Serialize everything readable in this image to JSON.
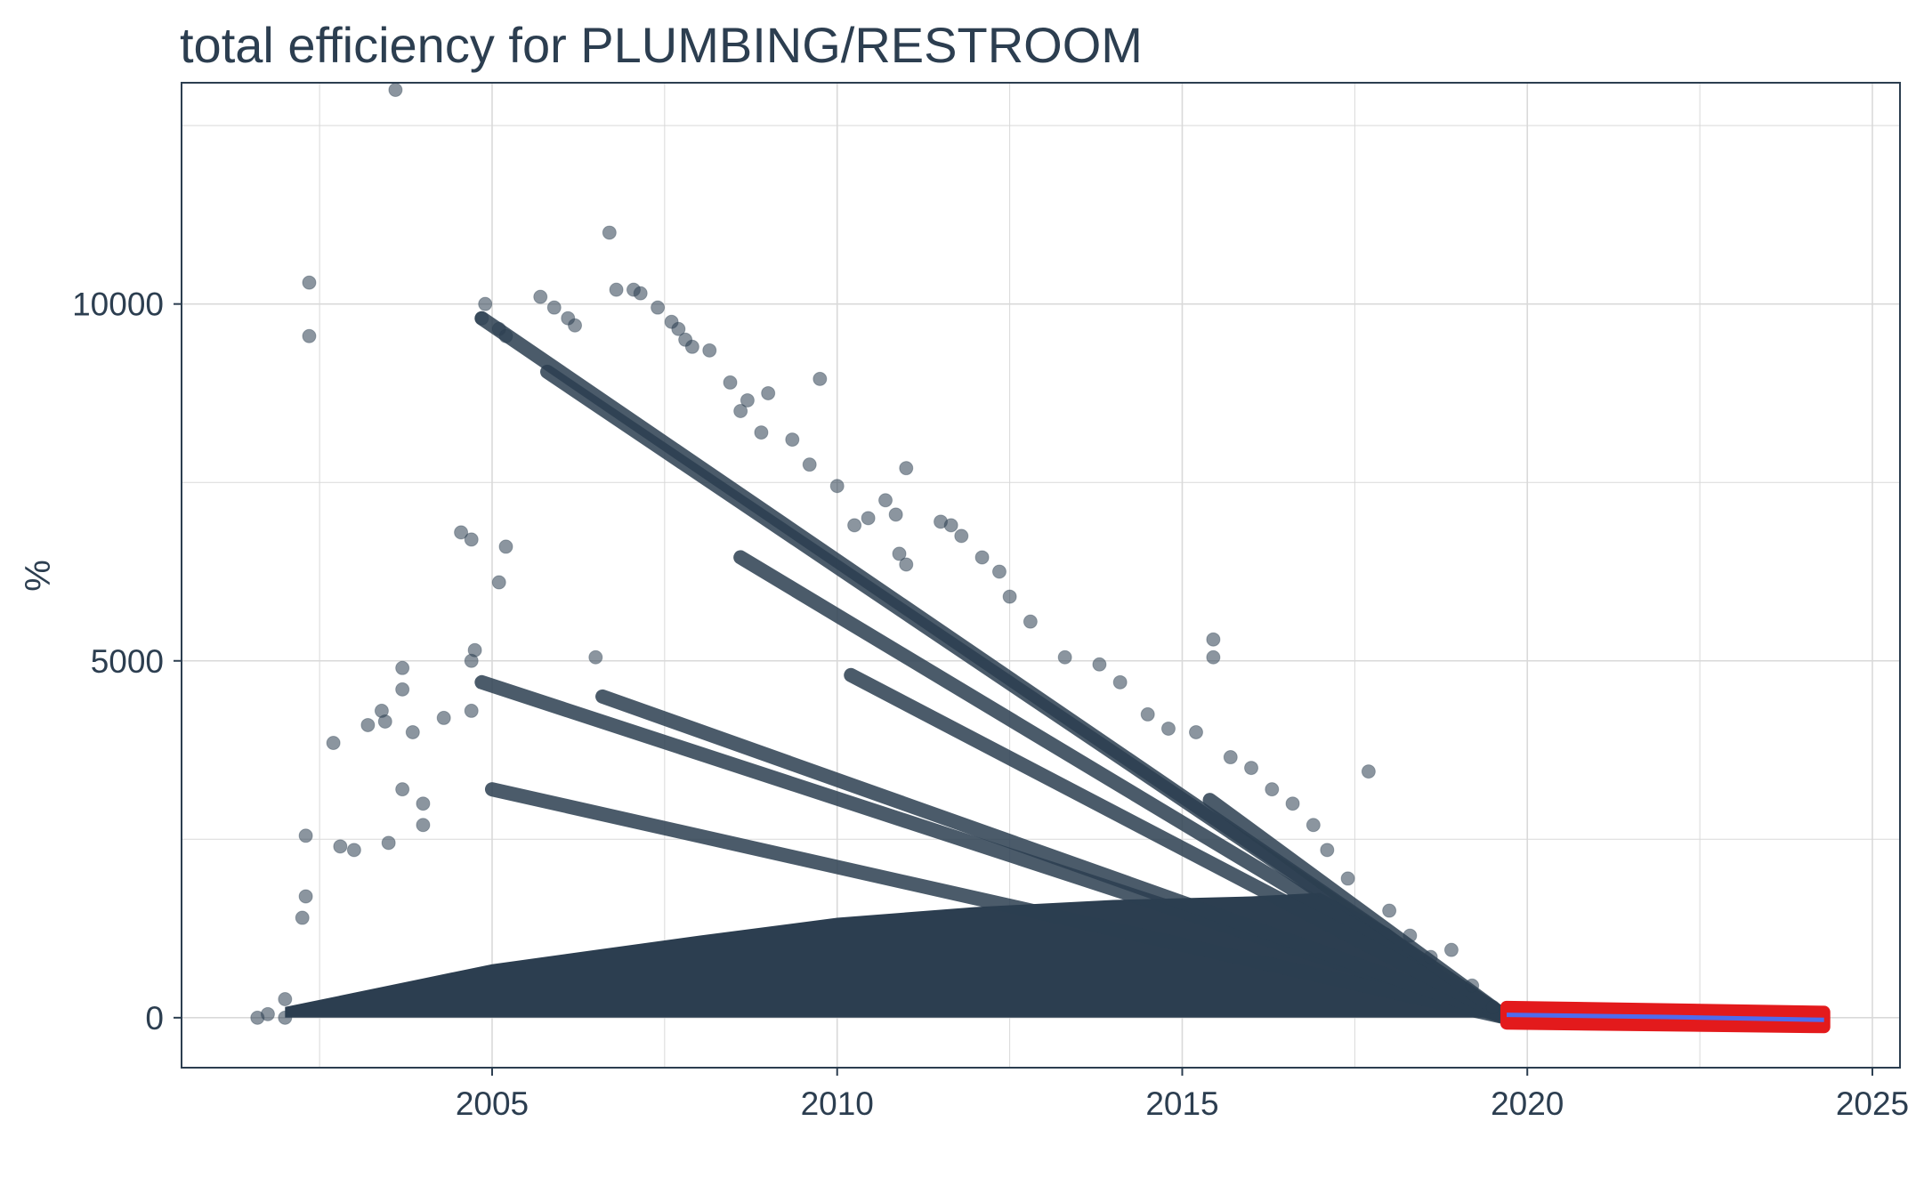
{
  "colors": {
    "background": "#ffffff",
    "points": "#2c3e50",
    "grid": "#d9d9d9",
    "frame": "#2c3e50",
    "forecast_band": "#e31a1c",
    "forecast_line": "#4f6bed",
    "text": "#2c3e50"
  },
  "chart_data": {
    "type": "scatter",
    "title": "total efficiency for PLUMBING/RESTROOM",
    "xlabel": "",
    "ylabel": "%",
    "xlim": [
      2000.5,
      2025.4
    ],
    "ylim": [
      -700,
      13100
    ],
    "x_ticks": [
      2005,
      2010,
      2015,
      2020,
      2025
    ],
    "x_tick_labels": [
      "2005",
      "2010",
      "2015",
      "2020",
      "2025"
    ],
    "y_ticks": [
      0,
      5000,
      10000
    ],
    "y_tick_labels": [
      "0",
      "5000",
      "10000"
    ],
    "grid": true,
    "legend": "none",
    "series": [
      {
        "kind": "observed scatter (sample of visible points)",
        "points": [
          [
            2001.6,
            0
          ],
          [
            2001.75,
            50
          ],
          [
            2002.0,
            0
          ],
          [
            2002.0,
            260
          ],
          [
            2002.25,
            1400
          ],
          [
            2002.3,
            1700
          ],
          [
            2002.3,
            2550
          ],
          [
            2002.35,
            9550
          ],
          [
            2002.35,
            10300
          ],
          [
            2002.7,
            3850
          ],
          [
            2002.8,
            2400
          ],
          [
            2003.0,
            2350
          ],
          [
            2003.2,
            4100
          ],
          [
            2003.4,
            4300
          ],
          [
            2003.45,
            4150
          ],
          [
            2003.5,
            2450
          ],
          [
            2003.6,
            13000
          ],
          [
            2003.7,
            4900
          ],
          [
            2003.7,
            4600
          ],
          [
            2003.7,
            3200
          ],
          [
            2003.85,
            4000
          ],
          [
            2004.0,
            3000
          ],
          [
            2004.0,
            2700
          ],
          [
            2004.3,
            4200
          ],
          [
            2004.55,
            6800
          ],
          [
            2004.7,
            6700
          ],
          [
            2004.7,
            5000
          ],
          [
            2004.7,
            4300
          ],
          [
            2004.75,
            5150
          ],
          [
            2004.85,
            9800
          ],
          [
            2004.9,
            10000
          ],
          [
            2005.1,
            9650
          ],
          [
            2005.2,
            9550
          ],
          [
            2005.1,
            6100
          ],
          [
            2005.2,
            6600
          ],
          [
            2005.7,
            10100
          ],
          [
            2005.9,
            9950
          ],
          [
            2006.1,
            9800
          ],
          [
            2006.2,
            9700
          ],
          [
            2006.5,
            5050
          ],
          [
            2006.7,
            11000
          ],
          [
            2006.8,
            10200
          ],
          [
            2007.05,
            10200
          ],
          [
            2007.15,
            10150
          ],
          [
            2007.4,
            9950
          ],
          [
            2007.6,
            9750
          ],
          [
            2007.8,
            9500
          ],
          [
            2007.7,
            9650
          ],
          [
            2007.9,
            9400
          ],
          [
            2008.15,
            9350
          ],
          [
            2008.45,
            8900
          ],
          [
            2008.7,
            8650
          ],
          [
            2008.6,
            8500
          ],
          [
            2008.9,
            8200
          ],
          [
            2009.0,
            8750
          ],
          [
            2009.35,
            8100
          ],
          [
            2009.6,
            7750
          ],
          [
            2009.75,
            8950
          ],
          [
            2010.0,
            7450
          ],
          [
            2010.25,
            6900
          ],
          [
            2010.45,
            7000
          ],
          [
            2010.7,
            7250
          ],
          [
            2010.85,
            7050
          ],
          [
            2010.9,
            6500
          ],
          [
            2011.0,
            6350
          ],
          [
            2011.0,
            7700
          ],
          [
            2011.5,
            6950
          ],
          [
            2011.65,
            6900
          ],
          [
            2011.8,
            6750
          ],
          [
            2012.1,
            6450
          ],
          [
            2012.35,
            6250
          ],
          [
            2012.5,
            5900
          ],
          [
            2012.8,
            5550
          ],
          [
            2013.3,
            5050
          ],
          [
            2013.8,
            4950
          ],
          [
            2014.1,
            4700
          ],
          [
            2014.5,
            4250
          ],
          [
            2014.8,
            4050
          ],
          [
            2015.2,
            4000
          ],
          [
            2015.45,
            5300
          ],
          [
            2015.45,
            5050
          ],
          [
            2015.7,
            3650
          ],
          [
            2016.0,
            3500
          ],
          [
            2016.3,
            3200
          ],
          [
            2016.6,
            3000
          ],
          [
            2016.9,
            2700
          ],
          [
            2017.1,
            2350
          ],
          [
            2017.4,
            1950
          ],
          [
            2017.7,
            3450
          ],
          [
            2018.0,
            1500
          ],
          [
            2018.3,
            1150
          ],
          [
            2018.6,
            850
          ],
          [
            2018.9,
            950
          ],
          [
            2019.2,
            450
          ],
          [
            2019.5,
            150
          ]
        ]
      },
      {
        "kind": "dense diagonal bands",
        "bands": [
          {
            "from": [
              2005.8,
              9050
            ],
            "to": [
              2019.7,
              0
            ]
          },
          {
            "from": [
              2004.85,
              9800
            ],
            "to": [
              2019.7,
              0
            ]
          },
          {
            "from": [
              2004.85,
              4700
            ],
            "to": [
              2019.7,
              0
            ]
          },
          {
            "from": [
              2005.0,
              3200
            ],
            "to": [
              2019.7,
              0
            ]
          },
          {
            "from": [
              2006.6,
              4500
            ],
            "to": [
              2019.7,
              0
            ]
          },
          {
            "from": [
              2008.6,
              6450
            ],
            "to": [
              2019.7,
              0
            ]
          },
          {
            "from": [
              2010.2,
              4800
            ],
            "to": [
              2019.7,
              0
            ]
          },
          {
            "from": [
              2015.4,
              3050
            ],
            "to": [
              2019.7,
              0
            ]
          }
        ]
      },
      {
        "kind": "forecast",
        "x_range": [
          2019.7,
          2024.3
        ],
        "line": [
          [
            2019.7,
            40
          ],
          [
            2022.0,
            10
          ],
          [
            2024.3,
            -30
          ]
        ],
        "band": [
          [
            2019.7,
            -80,
            150
          ],
          [
            2024.3,
            -130,
            80
          ]
        ]
      }
    ]
  }
}
